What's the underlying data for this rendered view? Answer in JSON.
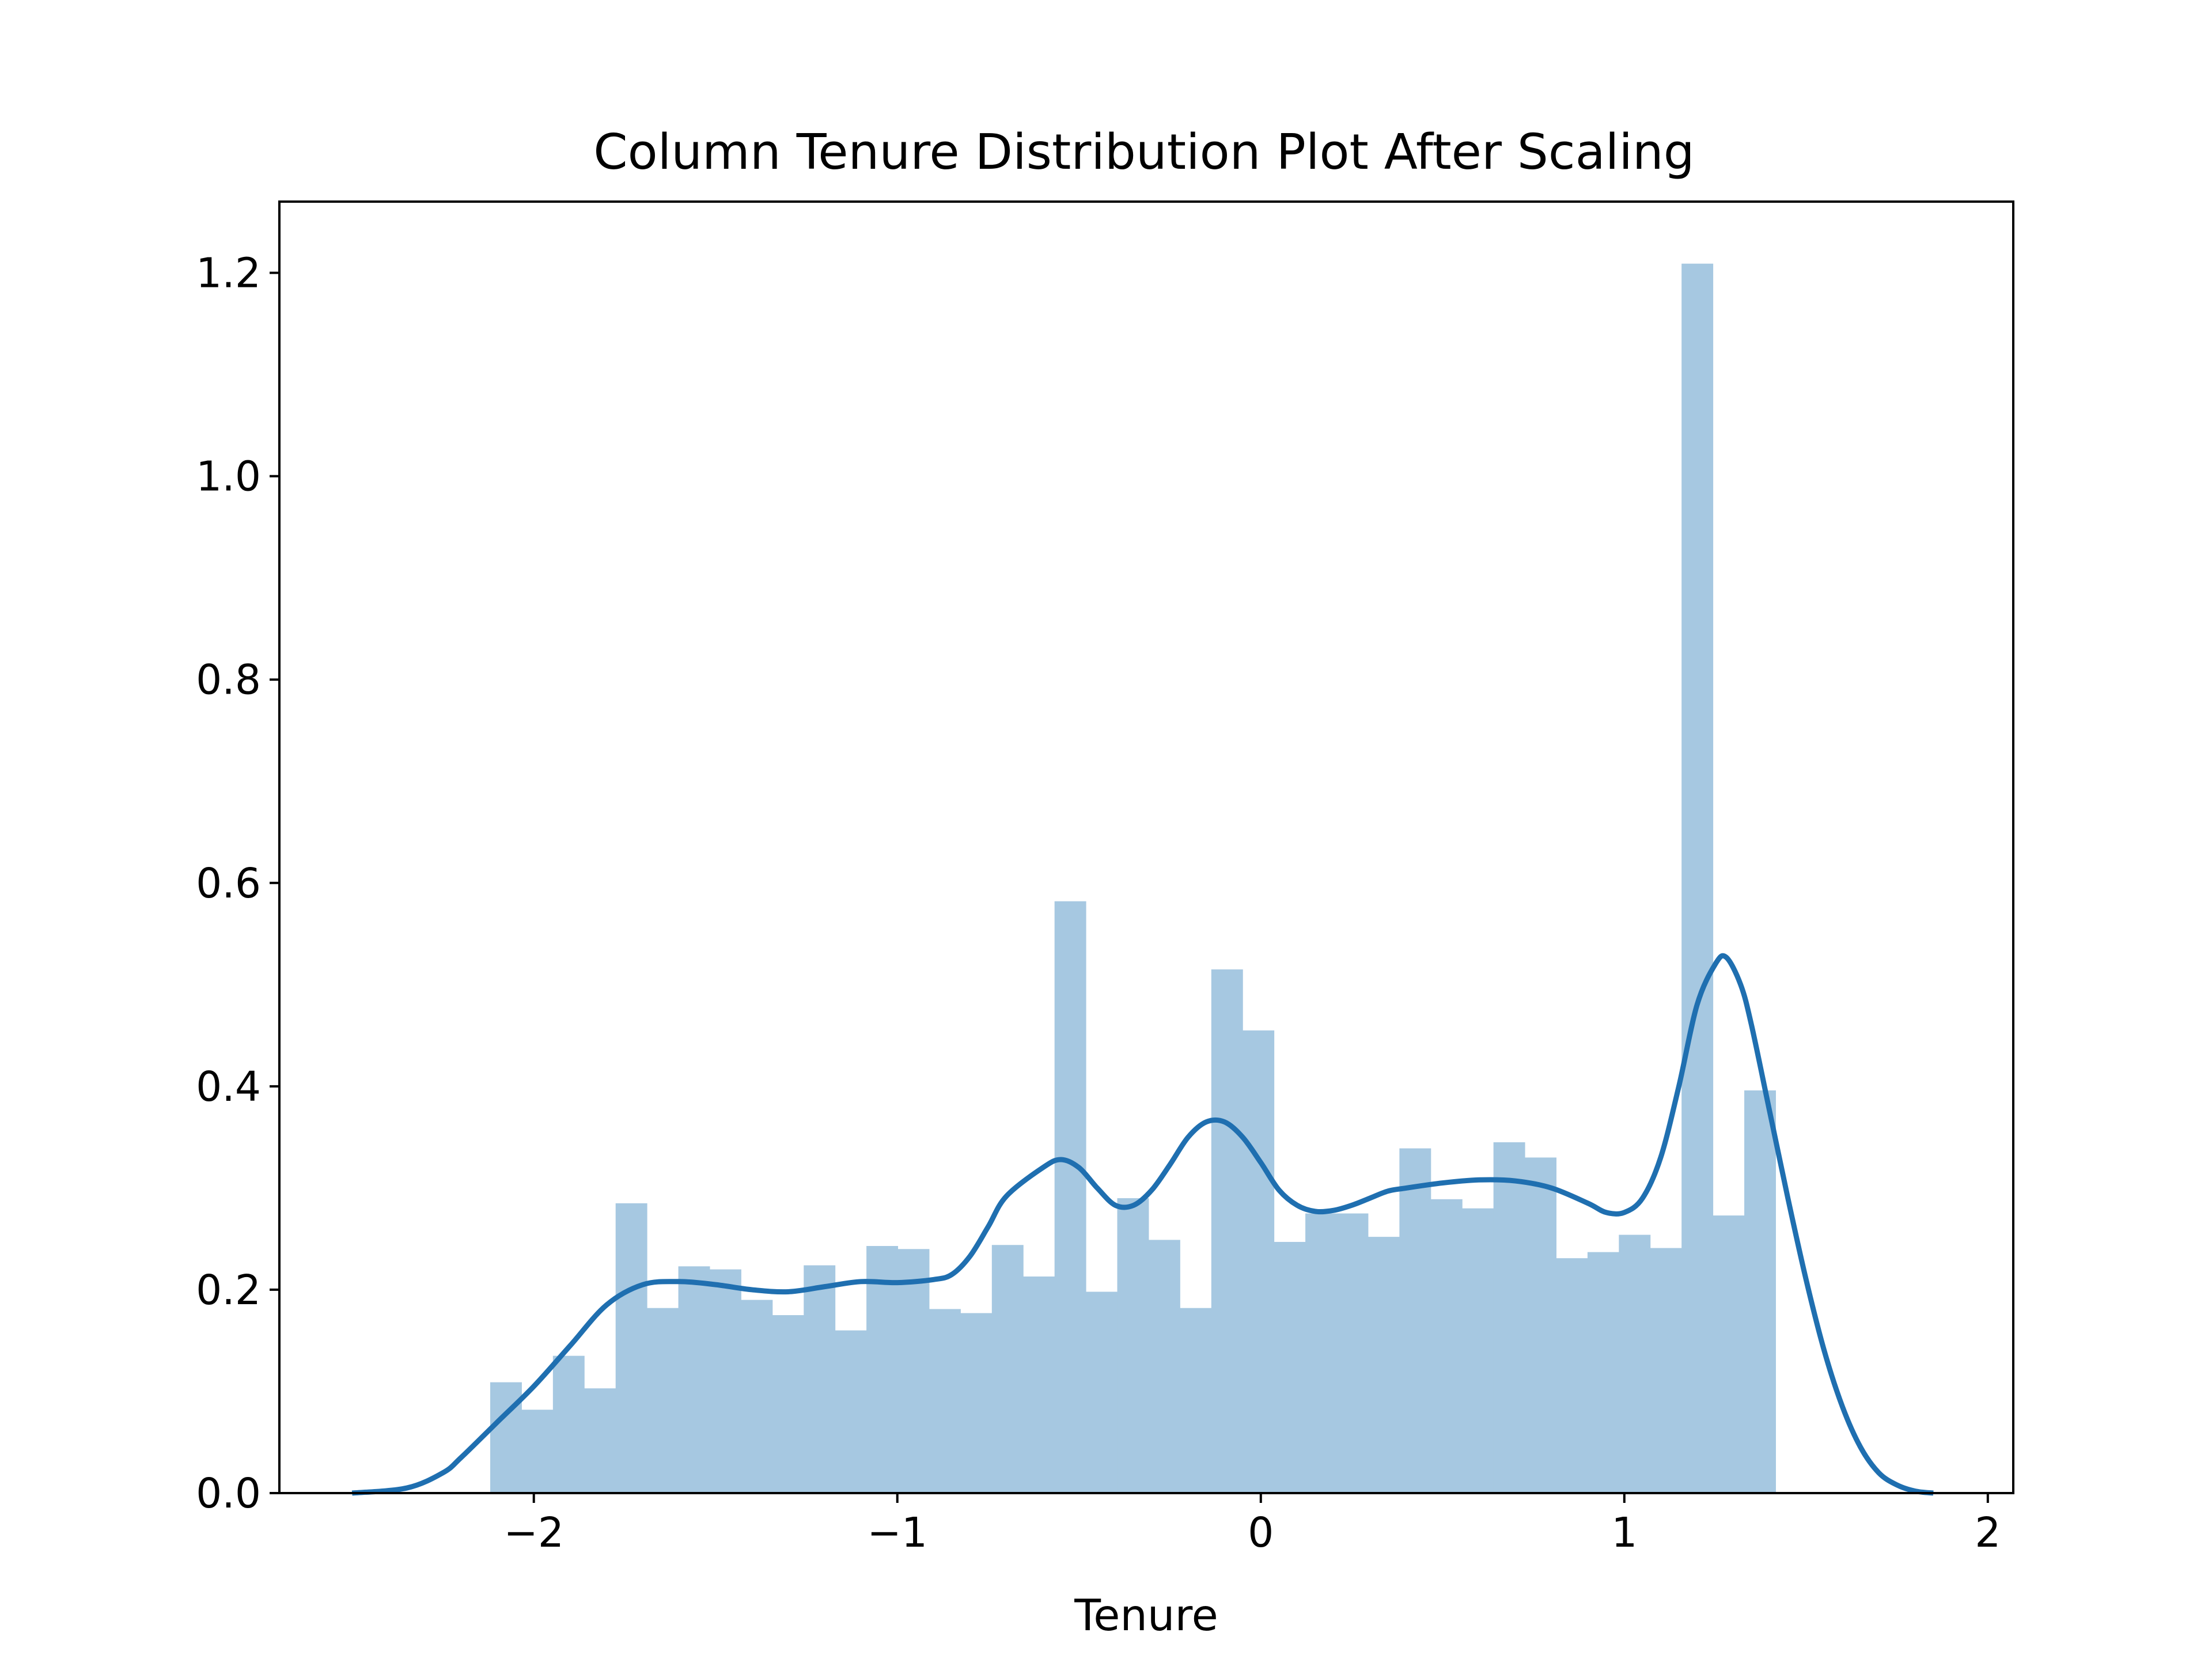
{
  "chart_data": {
    "type": "bar",
    "title": "Column Tenure Distribution Plot After Scaling",
    "xlabel": "Tenure",
    "ylabel": "",
    "xlim": [
      -2.7,
      2.07
    ],
    "ylim": [
      0,
      1.27
    ],
    "xticks": [
      -2,
      -1,
      0,
      1,
      2
    ],
    "xtick_labels": [
      "−2",
      "−1",
      "0",
      "1",
      "2"
    ],
    "yticks": [
      0.0,
      0.2,
      0.4,
      0.6,
      0.8,
      1.0,
      1.2
    ],
    "ytick_labels": [
      "0.0",
      "0.2",
      "0.4",
      "0.6",
      "0.8",
      "1.0",
      "1.2"
    ],
    "grid": false,
    "colors": {
      "histogram": "#a6c8e1",
      "kde": "#1f6fb0"
    },
    "histogram": {
      "bin_start": -2.12,
      "bin_width": 0.08625,
      "values": [
        0.109,
        0.082,
        0.135,
        0.103,
        0.285,
        0.182,
        0.223,
        0.22,
        0.19,
        0.175,
        0.224,
        0.16,
        0.243,
        0.24,
        0.181,
        0.177,
        0.244,
        0.213,
        0.582,
        0.198,
        0.29,
        0.249,
        0.182,
        0.515,
        0.455,
        0.247,
        0.275,
        0.275,
        0.252,
        0.339,
        0.289,
        0.28,
        0.345,
        0.33,
        0.231,
        0.237,
        0.254,
        0.241,
        1.209,
        0.273,
        0.396
      ]
    },
    "kde": {
      "name": "",
      "x": [
        -2.5,
        -2.35,
        -2.25,
        -2.2,
        -2.1,
        -2.0,
        -1.9,
        -1.8,
        -1.7,
        -1.6,
        -1.5,
        -1.4,
        -1.3,
        -1.2,
        -1.1,
        -1.0,
        -0.9,
        -0.85,
        -0.8,
        -0.75,
        -0.7,
        -0.6,
        -0.55,
        -0.5,
        -0.45,
        -0.4,
        -0.35,
        -0.3,
        -0.25,
        -0.2,
        -0.15,
        -0.1,
        -0.05,
        0.0,
        0.05,
        0.1,
        0.15,
        0.2,
        0.25,
        0.3,
        0.35,
        0.4,
        0.5,
        0.6,
        0.7,
        0.8,
        0.9,
        0.95,
        1.0,
        1.05,
        1.1,
        1.15,
        1.2,
        1.25,
        1.28,
        1.32,
        1.35,
        1.4,
        1.45,
        1.5,
        1.55,
        1.6,
        1.65,
        1.7,
        1.75,
        1.8,
        1.85
      ],
      "y": [
        0.0,
        0.005,
        0.02,
        0.035,
        0.07,
        0.105,
        0.145,
        0.185,
        0.205,
        0.208,
        0.205,
        0.2,
        0.198,
        0.203,
        0.208,
        0.207,
        0.21,
        0.215,
        0.233,
        0.262,
        0.292,
        0.32,
        0.328,
        0.32,
        0.3,
        0.283,
        0.283,
        0.298,
        0.323,
        0.35,
        0.365,
        0.365,
        0.35,
        0.325,
        0.298,
        0.283,
        0.277,
        0.278,
        0.283,
        0.29,
        0.297,
        0.3,
        0.305,
        0.308,
        0.307,
        0.3,
        0.285,
        0.276,
        0.276,
        0.29,
        0.33,
        0.4,
        0.48,
        0.52,
        0.527,
        0.5,
        0.46,
        0.375,
        0.29,
        0.21,
        0.14,
        0.085,
        0.045,
        0.02,
        0.008,
        0.002,
        0.0
      ]
    }
  }
}
